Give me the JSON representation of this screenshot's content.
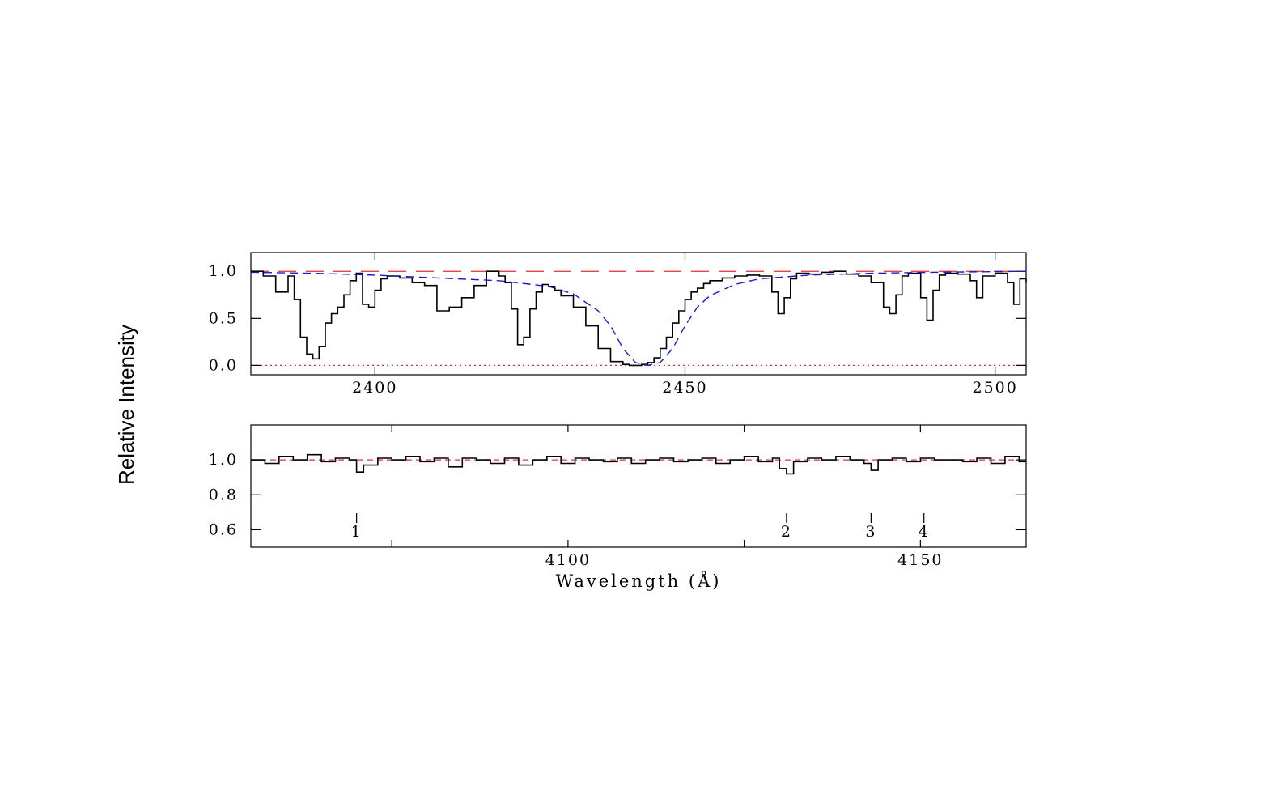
{
  "chart_data": [
    {
      "type": "line",
      "panel": "top",
      "xlim": [
        2380,
        2505
      ],
      "ylim": [
        -0.1,
        1.2
      ],
      "xticks": [
        2400,
        2450,
        2500
      ],
      "xtick_labels": [
        "2400",
        "2450",
        "2500"
      ],
      "yticks": [
        0.0,
        0.5,
        1.0
      ],
      "ytick_labels": [
        "0.0",
        "0.5",
        "1.0"
      ],
      "continuum_level": 1.0,
      "zero_level": 0.0,
      "series": [
        {
          "style": "histogram",
          "color": "#000000",
          "x": [
            2380,
            2382,
            2384,
            2386,
            2387,
            2388,
            2389,
            2390,
            2391,
            2392,
            2393,
            2394,
            2395,
            2396,
            2397,
            2398,
            2399,
            2400,
            2401,
            2402,
            2404,
            2406,
            2408,
            2410,
            2412,
            2414,
            2416,
            2418,
            2420,
            2421,
            2422,
            2423,
            2424,
            2425,
            2426,
            2427,
            2428,
            2429,
            2430,
            2432,
            2434,
            2436,
            2438,
            2440,
            2441,
            2442,
            2443,
            2444,
            2445,
            2446,
            2447,
            2448,
            2449,
            2450,
            2451,
            2452,
            2453,
            2454,
            2456,
            2458,
            2460,
            2462,
            2464,
            2465,
            2466,
            2467,
            2468,
            2470,
            2472,
            2474,
            2476,
            2478,
            2480,
            2482,
            2483,
            2484,
            2485,
            2486,
            2488,
            2489,
            2490,
            2491,
            2492,
            2494,
            2496,
            2497,
            2498,
            2500,
            2502,
            2503,
            2504,
            2505
          ],
          "y": [
            1.0,
            0.95,
            0.78,
            0.95,
            0.7,
            0.3,
            0.12,
            0.07,
            0.2,
            0.45,
            0.55,
            0.62,
            0.75,
            0.9,
            0.98,
            0.65,
            0.62,
            0.8,
            0.92,
            0.95,
            0.93,
            0.88,
            0.85,
            0.58,
            0.62,
            0.72,
            0.85,
            1.0,
            0.95,
            0.88,
            0.6,
            0.22,
            0.3,
            0.6,
            0.78,
            0.86,
            0.84,
            0.8,
            0.74,
            0.62,
            0.42,
            0.18,
            0.04,
            0.01,
            0.0,
            0.0,
            0.01,
            0.03,
            0.08,
            0.18,
            0.3,
            0.45,
            0.58,
            0.7,
            0.78,
            0.82,
            0.87,
            0.9,
            0.93,
            0.95,
            0.96,
            0.95,
            0.78,
            0.55,
            0.72,
            0.92,
            0.98,
            0.97,
            0.99,
            1.0,
            0.97,
            0.95,
            0.88,
            0.62,
            0.55,
            0.75,
            0.95,
            0.98,
            0.72,
            0.48,
            0.8,
            0.96,
            0.98,
            0.97,
            0.9,
            0.72,
            0.95,
            0.98,
            0.88,
            0.65,
            0.92,
            0.88
          ]
        },
        {
          "style": "dashed",
          "color": "#1a1acc",
          "x": [
            2380,
            2390,
            2400,
            2410,
            2420,
            2428,
            2432,
            2436,
            2438,
            2440,
            2442,
            2444,
            2446,
            2448,
            2450,
            2452,
            2454,
            2458,
            2462,
            2470,
            2480,
            2490,
            2505
          ],
          "y": [
            0.99,
            0.98,
            0.96,
            0.93,
            0.9,
            0.84,
            0.76,
            0.58,
            0.42,
            0.18,
            0.03,
            0.0,
            0.03,
            0.18,
            0.42,
            0.62,
            0.74,
            0.86,
            0.92,
            0.96,
            0.98,
            0.99,
            1.0
          ]
        }
      ]
    },
    {
      "type": "line",
      "panel": "bottom",
      "xlim": [
        4055,
        4165
      ],
      "ylim": [
        0.5,
        1.2
      ],
      "xticks": [
        4100,
        4150
      ],
      "xtick_labels": [
        "4100",
        "4150"
      ],
      "minor_xticks": [
        4075,
        4125
      ],
      "yticks": [
        0.6,
        0.8,
        1.0
      ],
      "ytick_labels": [
        "0.6",
        "0.8",
        "1.0"
      ],
      "xlabel": "Wavelength (Å)",
      "continuum_level": 1.0,
      "markers": [
        {
          "x": 4070,
          "label": "1"
        },
        {
          "x": 4131,
          "label": "2"
        },
        {
          "x": 4143,
          "label": "3"
        },
        {
          "x": 4150.5,
          "label": "4"
        }
      ],
      "series": [
        {
          "style": "histogram",
          "color": "#000000",
          "x": [
            4055,
            4057,
            4059,
            4061,
            4063,
            4065,
            4067,
            4069,
            4070,
            4071,
            4073,
            4075,
            4077,
            4079,
            4081,
            4083,
            4085,
            4087,
            4089,
            4091,
            4093,
            4095,
            4097,
            4099,
            4101,
            4103,
            4105,
            4107,
            4109,
            4111,
            4113,
            4115,
            4117,
            4119,
            4121,
            4123,
            4125,
            4127,
            4129,
            4130,
            4131,
            4132,
            4134,
            4136,
            4138,
            4140,
            4142,
            4143,
            4144,
            4146,
            4148,
            4150,
            4152,
            4154,
            4156,
            4158,
            4160,
            4162,
            4164
          ],
          "y": [
            1.0,
            0.98,
            1.02,
            1.0,
            1.03,
            0.99,
            1.01,
            1.0,
            0.93,
            0.97,
            1.01,
            1.0,
            1.02,
            0.99,
            1.01,
            0.96,
            1.01,
            1.0,
            0.98,
            1.01,
            0.97,
            1.0,
            1.02,
            0.98,
            1.01,
            1.0,
            0.99,
            1.01,
            0.98,
            1.0,
            1.01,
            0.99,
            1.0,
            1.01,
            0.98,
            1.0,
            1.02,
            0.99,
            1.01,
            0.95,
            0.92,
            0.99,
            1.01,
            1.0,
            1.02,
            1.0,
            0.98,
            0.94,
            1.0,
            1.01,
            0.99,
            1.01,
            1.0,
            1.0,
            0.99,
            1.01,
            0.98,
            1.02,
            0.99
          ]
        }
      ]
    }
  ],
  "ylabel": "Relative Intensity",
  "colors": {
    "spectrum": "#000000",
    "fit": "#1a1acc",
    "continuum": "#e03030",
    "zero_level": "#e03030"
  }
}
